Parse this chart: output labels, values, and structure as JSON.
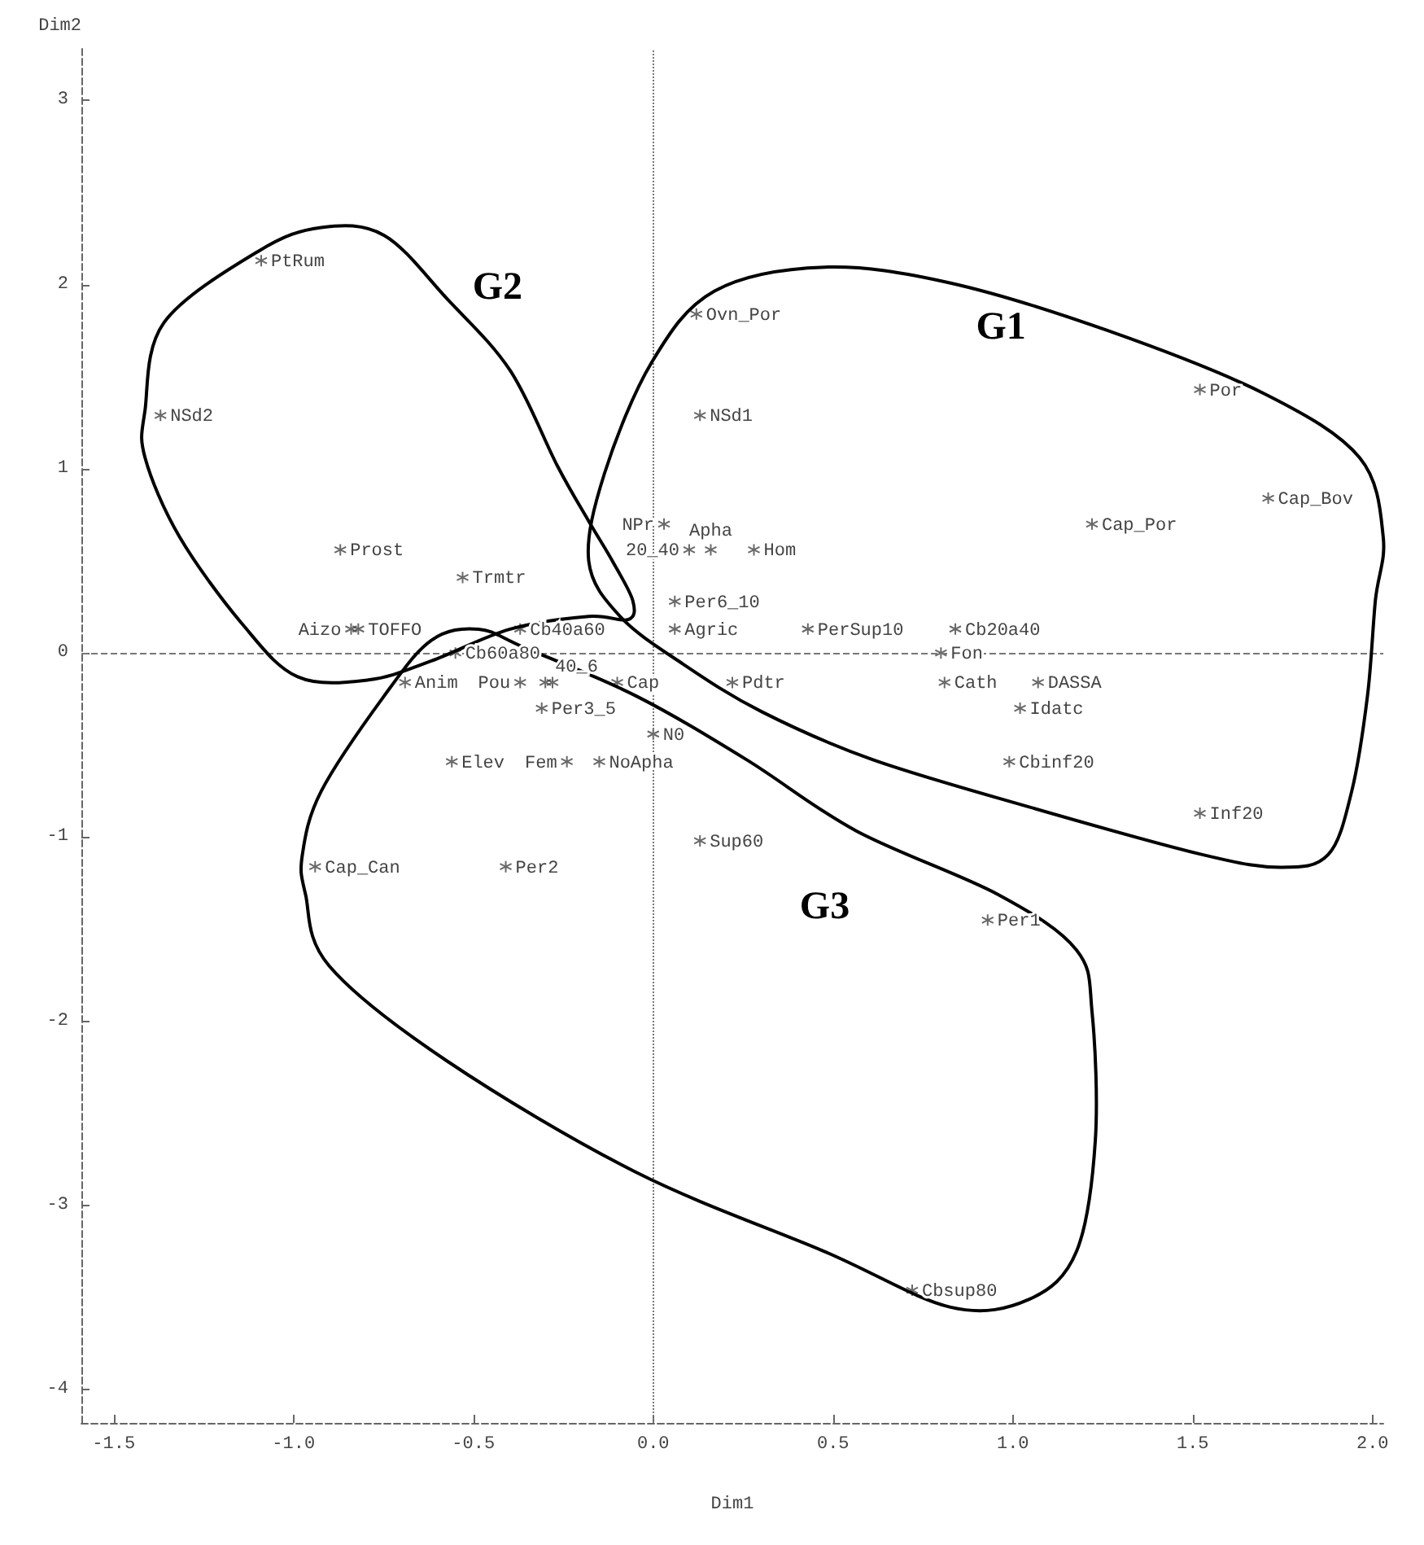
{
  "chart_data": {
    "type": "scatter",
    "xlabel": "Dim1",
    "ylabel": "Dim2",
    "color": "#444444",
    "marker": "cross",
    "xlim": [
      -1.59,
      2.03
    ],
    "xticks": [
      {
        "value": -1.5,
        "label": "-1.5"
      },
      {
        "value": -1,
        "label": "-1.0"
      },
      {
        "value": -0.5,
        "label": "-0.5"
      },
      {
        "value": 0,
        "label": "0.0"
      },
      {
        "value": 0.5,
        "label": "0.5"
      },
      {
        "value": 1,
        "label": "1.0"
      },
      {
        "value": 1.5,
        "label": "1.5"
      },
      {
        "value": 2,
        "label": "2.0"
      }
    ],
    "ylim": [
      -4.18,
      3.28
    ],
    "yticks": [
      -4,
      -3,
      -2,
      -1,
      0,
      1,
      2,
      3
    ],
    "grid": false,
    "x": [
      -1.09,
      -1.37,
      -0.87,
      -0.53,
      -0.84,
      -0.82,
      -0.37,
      -0.55,
      -0.69,
      -0.37,
      -0.3,
      -0.28,
      -0.1,
      -0.31,
      -0.24,
      -0.15,
      -0.56,
      0.0,
      -0.94,
      -0.41,
      0.13,
      0.1,
      0.16,
      0.28,
      0.03,
      0.06,
      0.06,
      0.12,
      0.13,
      0.43,
      0.84,
      0.8,
      0.22,
      0.81,
      1.07,
      1.02,
      0.99,
      1.52,
      1.71,
      1.22,
      1.52,
      0.93,
      0.72
    ],
    "values": [
      2.13,
      1.29,
      0.56,
      0.41,
      0.13,
      0.13,
      0.13,
      0.0,
      -0.16,
      -0.16,
      -0.16,
      -0.16,
      -0.16,
      -0.3,
      -0.59,
      -0.59,
      -0.59,
      -0.44,
      -1.16,
      -1.16,
      -1.02,
      0.56,
      0.56,
      0.56,
      0.7,
      0.28,
      0.13,
      1.84,
      1.29,
      0.13,
      0.13,
      0.0,
      -0.16,
      -0.16,
      -0.16,
      -0.3,
      -0.59,
      1.43,
      0.84,
      0.7,
      -0.87,
      -1.45,
      -3.46
    ],
    "ref_lines": [
      {
        "axis": "x",
        "value": 0,
        "line_style": "dotted"
      },
      {
        "axis": "y",
        "value": 0,
        "line_style": "dashed"
      }
    ],
    "annotations": [
      {
        "text": "PtRum",
        "x": -1.09,
        "y": 2.13
      },
      {
        "text": "NSd2",
        "x": -1.37,
        "y": 1.29
      },
      {
        "text": "Prost",
        "x": -0.87,
        "y": 0.56
      },
      {
        "text": "Trmtr",
        "x": -0.53,
        "y": 0.41
      },
      {
        "text": "Aizo",
        "x": -0.84,
        "y": 0.13
      },
      {
        "text": "TOFFO",
        "x": -0.82,
        "y": 0.13
      },
      {
        "text": "Cb40a60",
        "x": -0.37,
        "y": 0.13
      },
      {
        "text": "Cb60a80",
        "x": -0.55,
        "y": 0.0
      },
      {
        "text": "Anim",
        "x": -0.69,
        "y": -0.16
      },
      {
        "text": "Pou",
        "x": -0.37,
        "y": -0.16
      },
      {
        "text": "40_6",
        "x": -0.3,
        "y": -0.16
      },
      {
        "text": "Cap",
        "x": -0.1,
        "y": -0.16
      },
      {
        "text": "Per3_5",
        "x": -0.31,
        "y": -0.3
      },
      {
        "text": "Fem",
        "x": -0.24,
        "y": -0.59
      },
      {
        "text": "NoApha",
        "x": -0.15,
        "y": -0.59
      },
      {
        "text": "Elev",
        "x": -0.56,
        "y": -0.59
      },
      {
        "text": "N0",
        "x": 0.0,
        "y": -0.44
      },
      {
        "text": "Cap_Can",
        "x": -0.94,
        "y": -1.16
      },
      {
        "text": "Per2",
        "x": -0.41,
        "y": -1.16
      },
      {
        "text": "Sup60",
        "x": 0.13,
        "y": -1.02
      },
      {
        "text": "20_40",
        "x": 0.1,
        "y": 0.56
      },
      {
        "text": "Apha",
        "x": 0.16,
        "y": 0.56
      },
      {
        "text": "Hom",
        "x": 0.28,
        "y": 0.56
      },
      {
        "text": "NPr",
        "x": 0.03,
        "y": 0.7
      },
      {
        "text": "Per6_10",
        "x": 0.06,
        "y": 0.28
      },
      {
        "text": "Agric",
        "x": 0.06,
        "y": 0.13
      },
      {
        "text": "Ovn_Por",
        "x": 0.12,
        "y": 1.84
      },
      {
        "text": "NSd1",
        "x": 0.13,
        "y": 1.29
      },
      {
        "text": "PerSup10",
        "x": 0.43,
        "y": 0.13
      },
      {
        "text": "Cb20a40",
        "x": 0.84,
        "y": 0.13
      },
      {
        "text": "Fon",
        "x": 0.8,
        "y": 0.0
      },
      {
        "text": "Pdtr",
        "x": 0.22,
        "y": -0.16
      },
      {
        "text": "Cath",
        "x": 0.81,
        "y": -0.16
      },
      {
        "text": "DASSA",
        "x": 1.07,
        "y": -0.16
      },
      {
        "text": "Idatc",
        "x": 1.02,
        "y": -0.3
      },
      {
        "text": "Cbinf20",
        "x": 0.99,
        "y": -0.59
      },
      {
        "text": "Por",
        "x": 1.52,
        "y": 1.43
      },
      {
        "text": "Cap_Bov",
        "x": 1.71,
        "y": 0.84
      },
      {
        "text": "Cap_Por",
        "x": 1.22,
        "y": 0.7
      },
      {
        "text": "Inf20",
        "x": 1.52,
        "y": -0.87
      },
      {
        "text": "Per1",
        "x": 0.93,
        "y": -1.45
      },
      {
        "text": "Cbsup80",
        "x": 0.72,
        "y": -3.46
      },
      "G1",
      "G2",
      "G3"
    ]
  }
}
